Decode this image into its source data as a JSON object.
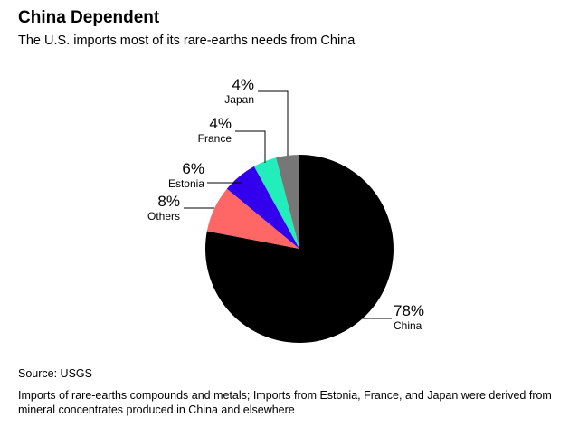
{
  "header": {
    "title": "China Dependent",
    "subtitle": "The U.S. imports most of its rare-earths needs from China"
  },
  "footer": {
    "source": "Source: USGS",
    "note": "Imports of rare-earths compounds and metals; Imports from Estonia, France, and Japan were derived from mineral concentrates produced in China and elsewhere"
  },
  "chart_data": {
    "type": "pie",
    "title": "China Dependent",
    "subtitle": "The U.S. imports most of its rare-earths needs from China",
    "slices": [
      {
        "name": "China",
        "value": 78,
        "label": "78%",
        "color": "#000000"
      },
      {
        "name": "Others",
        "value": 8,
        "label": "8%",
        "color": "#ff6666"
      },
      {
        "name": "Estonia",
        "value": 6,
        "label": "6%",
        "color": "#3300ee"
      },
      {
        "name": "France",
        "value": 4,
        "label": "4%",
        "color": "#22eebb"
      },
      {
        "name": "Japan",
        "value": 4,
        "label": "4%",
        "color": "#777777"
      }
    ],
    "start_angle_deg": 0,
    "direction": "clockwise",
    "label_side": "left except China on right"
  }
}
